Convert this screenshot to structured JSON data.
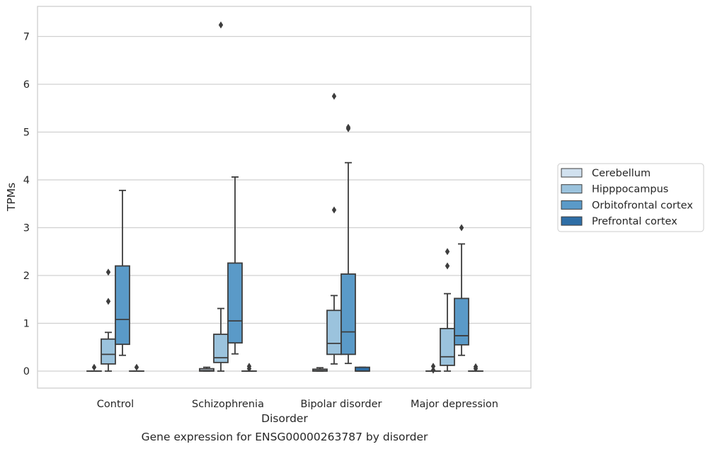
{
  "chart_data": {
    "type": "box",
    "caption": "Gene expression for ENSG00000263787 by disorder",
    "xlabel": "Disorder",
    "ylabel": "TPMs",
    "ylim": [
      -0.35,
      7.6
    ],
    "yticks": [
      0,
      1,
      2,
      3,
      4,
      5,
      6,
      7
    ],
    "grid": "horizontal",
    "legend_position": "right",
    "categories": [
      "Control",
      "Schizophrenia",
      "Bipolar disorder",
      "Major depression"
    ],
    "series": [
      {
        "name": "Cerebellum",
        "color": "#d1e1ef",
        "boxes": [
          {
            "whislo": 0,
            "q1": 0,
            "med": 0,
            "q3": 0,
            "whishi": 0,
            "fliers": [
              0.08
            ]
          },
          {
            "whislo": 0,
            "q1": 0,
            "med": 0.01,
            "q3": 0.05,
            "whishi": 0.08,
            "fliers": []
          },
          {
            "whislo": 0,
            "q1": 0,
            "med": 0.01,
            "q3": 0.04,
            "whishi": 0.07,
            "fliers": []
          },
          {
            "whislo": 0,
            "q1": 0,
            "med": 0,
            "q3": 0,
            "whishi": 0,
            "fliers": [
              0.02,
              0.1
            ]
          }
        ]
      },
      {
        "name": "Hipppocampus",
        "color": "#9bc3dd",
        "boxes": [
          {
            "whislo": 0,
            "q1": 0.15,
            "med": 0.35,
            "q3": 0.67,
            "whishi": 0.81,
            "fliers": [
              1.46,
              2.07
            ]
          },
          {
            "whislo": 0,
            "q1": 0.18,
            "med": 0.28,
            "q3": 0.77,
            "whishi": 1.31,
            "fliers": [
              7.24
            ]
          },
          {
            "whislo": 0.15,
            "q1": 0.35,
            "med": 0.58,
            "q3": 1.27,
            "whishi": 1.58,
            "fliers": [
              3.37,
              5.75
            ]
          },
          {
            "whislo": 0,
            "q1": 0.12,
            "med": 0.3,
            "q3": 0.89,
            "whishi": 1.62,
            "fliers": [
              2.2,
              2.5
            ]
          }
        ]
      },
      {
        "name": "Orbitofrontal cortex",
        "color": "#5a9ac8",
        "boxes": [
          {
            "whislo": 0.33,
            "q1": 0.56,
            "med": 1.08,
            "q3": 2.2,
            "whishi": 3.78,
            "fliers": []
          },
          {
            "whislo": 0.36,
            "q1": 0.59,
            "med": 1.05,
            "q3": 2.26,
            "whishi": 4.06,
            "fliers": []
          },
          {
            "whislo": 0.16,
            "q1": 0.35,
            "med": 0.82,
            "q3": 2.03,
            "whishi": 4.36,
            "fliers": [
              5.07,
              5.1
            ]
          },
          {
            "whislo": 0.33,
            "q1": 0.55,
            "med": 0.74,
            "q3": 1.52,
            "whishi": 2.66,
            "fliers": [
              3.0
            ]
          }
        ]
      },
      {
        "name": "Prefrontal cortex",
        "color": "#2e6ea6",
        "boxes": [
          {
            "whislo": 0,
            "q1": 0,
            "med": 0,
            "q3": 0,
            "whishi": 0,
            "fliers": [
              0.08
            ]
          },
          {
            "whislo": 0,
            "q1": 0,
            "med": 0,
            "q3": 0,
            "whishi": 0,
            "fliers": [
              0.05,
              0.1
            ]
          },
          {
            "whislo": 0,
            "q1": 0,
            "med": 0,
            "q3": 0.08,
            "whishi": 0.08,
            "fliers": []
          },
          {
            "whislo": 0,
            "q1": 0,
            "med": 0,
            "q3": 0,
            "whishi": 0,
            "fliers": [
              0.05,
              0.09
            ]
          }
        ]
      }
    ]
  }
}
